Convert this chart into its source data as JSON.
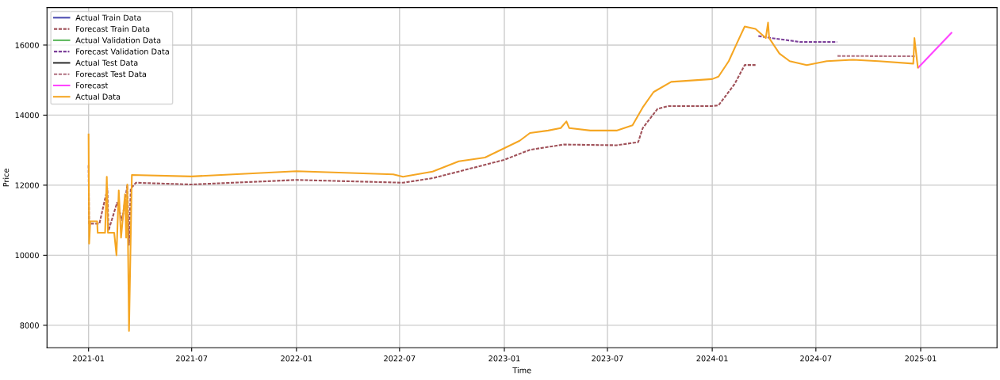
{
  "chart_data": {
    "type": "line",
    "xlabel": "Time",
    "ylabel": "Price",
    "xlim": [
      "2020-10-20",
      "2025-05-15"
    ],
    "ylim": [
      7360,
      17070
    ],
    "xticks": [
      {
        "value": "2021-01-01",
        "label": "2021-01"
      },
      {
        "value": "2021-07-01",
        "label": "2021-07"
      },
      {
        "value": "2022-01-01",
        "label": "2022-01"
      },
      {
        "value": "2022-07-01",
        "label": "2022-07"
      },
      {
        "value": "2023-01-01",
        "label": "2023-01"
      },
      {
        "value": "2023-07-01",
        "label": "2023-07"
      },
      {
        "value": "2024-01-01",
        "label": "2024-01"
      },
      {
        "value": "2024-07-01",
        "label": "2024-07"
      },
      {
        "value": "2025-01-01",
        "label": "2025-01"
      }
    ],
    "yticks": [
      8000,
      10000,
      12000,
      14000,
      16000
    ],
    "grid": true,
    "legend": "top left",
    "series": [
      {
        "name": "Actual Train Data",
        "color": "#4b4bb0",
        "line_style": "solid"
      },
      {
        "name": "Forecast Train Data",
        "color": "#a0525a",
        "line_style": "dashed",
        "x": [
          "2021-01-01",
          "2021-01-02",
          "2021-01-20",
          "2021-02-03",
          "2021-02-05",
          "2021-02-20",
          "2021-03-01",
          "2021-03-10",
          "2021-03-13",
          "2021-03-16",
          "2021-03-25",
          "2021-07-01",
          "2022-01-01",
          "2022-05-01",
          "2022-07-07",
          "2022-08-28",
          "2022-10-13",
          "2022-12-31",
          "2023-02-15",
          "2023-04-15",
          "2023-07-17",
          "2023-08-24",
          "2023-09-01",
          "2023-09-27",
          "2023-10-17",
          "2024-01-01",
          "2024-01-12",
          "2024-02-09",
          "2024-02-27",
          "2024-03-17"
        ],
        "values": [
          12570,
          10900,
          10900,
          11900,
          10700,
          11500,
          11000,
          12000,
          10300,
          11900,
          12070,
          12020,
          12150,
          12100,
          12070,
          12200,
          12390,
          12720,
          13010,
          13160,
          13140,
          13230,
          13630,
          14180,
          14260,
          14260,
          14280,
          14880,
          15430,
          15430
        ]
      },
      {
        "name": "Actual Validation Data",
        "color": "#5cb85c",
        "line_style": "solid"
      },
      {
        "name": "Forecast Validation Data",
        "color": "#7b3f99",
        "line_style": "dashed",
        "x": [
          "2024-03-22",
          "2024-04-14",
          "2024-06-03",
          "2024-08-07"
        ],
        "values": [
          16260,
          16200,
          16090,
          16090
        ]
      },
      {
        "name": "Actual Test Data",
        "color": "#333333",
        "line_style": "solid"
      },
      {
        "name": "Forecast Test Data",
        "color": "#b07080",
        "line_style": "dashed",
        "x": [
          "2024-08-08",
          "2024-12-24"
        ],
        "values": [
          15690,
          15680
        ]
      },
      {
        "name": "Forecast",
        "color": "#ff44ff",
        "line_style": "solid",
        "x": [
          "2024-12-28",
          "2025-02-24"
        ],
        "values": [
          15360,
          16350
        ]
      },
      {
        "name": "Actual Data",
        "color": "#f5a623",
        "line_style": "solid",
        "x": [
          "2021-01-01",
          "2021-01-02",
          "2021-01-04",
          "2021-01-16",
          "2021-01-17",
          "2021-01-30",
          "2021-02-02",
          "2021-02-04",
          "2021-02-15",
          "2021-02-19",
          "2021-02-23",
          "2021-02-27",
          "2021-03-06",
          "2021-03-08",
          "2021-03-10",
          "2021-03-13",
          "2021-03-18",
          "2021-07-01",
          "2022-01-01",
          "2022-06-20",
          "2022-07-07",
          "2022-08-28",
          "2022-10-13",
          "2022-11-28",
          "2022-12-31",
          "2023-01-28",
          "2023-02-15",
          "2023-03-19",
          "2023-04-10",
          "2023-04-20",
          "2023-04-25",
          "2023-06-01",
          "2023-07-17",
          "2023-08-14",
          "2023-09-01",
          "2023-09-20",
          "2023-10-21",
          "2024-01-01",
          "2024-01-12",
          "2024-01-30",
          "2024-02-13",
          "2024-02-27",
          "2024-03-17",
          "2024-04-04",
          "2024-04-08",
          "2024-04-10",
          "2024-04-28",
          "2024-05-16",
          "2024-06-15",
          "2024-07-20",
          "2024-09-04",
          "2024-10-19",
          "2024-12-19",
          "2024-12-21",
          "2024-12-27"
        ],
        "values": [
          13450,
          10330,
          10970,
          10970,
          10640,
          10640,
          12240,
          10640,
          10640,
          10000,
          11850,
          10500,
          11740,
          10500,
          12020,
          7840,
          12290,
          12250,
          12400,
          12310,
          12240,
          12390,
          12680,
          12790,
          13050,
          13270,
          13490,
          13560,
          13630,
          13820,
          13630,
          13560,
          13560,
          13710,
          14220,
          14660,
          14950,
          15030,
          15100,
          15540,
          16040,
          16530,
          16460,
          16200,
          16640,
          16200,
          15760,
          15540,
          15430,
          15540,
          15580,
          15540,
          15470,
          16200,
          15360
        ]
      }
    ]
  }
}
